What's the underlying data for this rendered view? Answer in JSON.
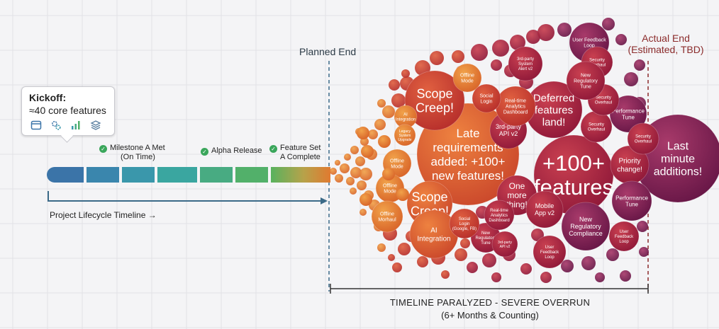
{
  "kickoff": {
    "title": "Kickoff:",
    "subtitle": "≈40 core features",
    "icons": [
      "window-icon",
      "gears-icon",
      "bar-chart-icon",
      "layers-icon"
    ]
  },
  "milestones": [
    {
      "line1": "Milestone A Met",
      "line2": "(On Time)"
    },
    {
      "line1": "Alpha Release",
      "line2": ""
    },
    {
      "line1": "Feature Set",
      "line2": "A Complete"
    }
  ],
  "timeline": {
    "lifecycle_label": "Project Lifecycle Timeline →",
    "planned_end": "Planned End",
    "actual_end_line1": "Actual End",
    "actual_end_line2": "(Estimated, TBD)",
    "overrun_line1": "TIMELINE PARALYZED - SEVERE OVERRUN",
    "overrun_line2": "(6+ Months & Counting)"
  },
  "colors": {
    "timeline_start": "#3b74a8",
    "timeline_mid": "#3aa6a0",
    "timeline_end": "#58b25e",
    "orange": "#e07a30",
    "red": "#c23a2a",
    "crimson": "#a3203a",
    "purple": "#7a1e52",
    "dashed_blue": "#3b6a88",
    "dashed_red": "#8b2b2b"
  },
  "bubbles": [
    {
      "lines": [
        "Late",
        "requirements",
        "added: +100+",
        "new features!"
      ],
      "tone": "orange-red"
    },
    {
      "lines": [
        "+100+",
        "features"
      ],
      "tone": "crimson"
    },
    {
      "lines": [
        "Scope",
        "Creep!"
      ],
      "tone": "red"
    },
    {
      "lines": [
        "Scope",
        "Creep!"
      ],
      "tone": "orange-red"
    },
    {
      "lines": [
        "Last",
        "minute",
        "additions!"
      ],
      "tone": "purple"
    },
    {
      "lines": [
        "Deferred",
        "features",
        "land!"
      ],
      "tone": "crimson"
    },
    {
      "lines": [
        "One",
        "more",
        "thing!"
      ],
      "tone": "crimson"
    },
    {
      "lines": [
        "Priority",
        "change!"
      ],
      "tone": "crimson"
    },
    {
      "lines": [
        "AI",
        "Integration"
      ],
      "tone": "orange-red"
    },
    {
      "lines": [
        "3rd-party",
        "API v2"
      ],
      "tone": "crimson"
    },
    {
      "lines": [
        "Mobile",
        "App v2"
      ],
      "tone": "crimson"
    },
    {
      "lines": [
        "New",
        "Regulatory",
        "Compliance"
      ],
      "tone": "purple"
    },
    {
      "lines": [
        "Performance",
        "Tune"
      ],
      "tone": "purple"
    },
    {
      "lines": [
        "Performance",
        "Tune"
      ],
      "tone": "purple"
    },
    {
      "lines": [
        "Real-time",
        "Analytics",
        "Dashboard"
      ],
      "tone": "red"
    },
    {
      "lines": [
        "User Feedback",
        "Loop"
      ],
      "tone": "purple"
    },
    {
      "lines": [
        "Security",
        "Overhaul"
      ],
      "tone": "crimson"
    },
    {
      "lines": [
        "Security",
        "Overhaul"
      ],
      "tone": "crimson"
    },
    {
      "lines": [
        "Security",
        "Overhaul"
      ],
      "tone": "crimson"
    },
    {
      "lines": [
        "Security",
        "Overhaul"
      ],
      "tone": "crimson"
    },
    {
      "lines": [
        "New",
        "Regulatory",
        "Tune"
      ],
      "tone": "crimson"
    },
    {
      "lines": [
        "New",
        "Regulatory",
        "Tune"
      ],
      "tone": "crimson"
    },
    {
      "lines": [
        "User",
        "Feedback",
        "Loop"
      ],
      "tone": "crimson"
    },
    {
      "lines": [
        "User",
        "Feedback",
        "Loop"
      ],
      "tone": "crimson"
    },
    {
      "lines": [
        "Offline",
        "Mode"
      ],
      "tone": "orange"
    },
    {
      "lines": [
        "Offline",
        "Mode"
      ],
      "tone": "orange"
    },
    {
      "lines": [
        "Offline",
        "Mode"
      ],
      "tone": "orange"
    },
    {
      "lines": [
        "Offline",
        "Morhaul"
      ],
      "tone": "orange"
    },
    {
      "lines": [
        "AI",
        "Integration"
      ],
      "tone": "orange"
    },
    {
      "lines": [
        "Legacy",
        "System",
        "Upgrade"
      ],
      "tone": "orange"
    },
    {
      "lines": [
        "Social",
        "Login"
      ],
      "tone": "red"
    },
    {
      "lines": [
        "Social",
        "Login",
        "(Google, FB)"
      ],
      "tone": "red"
    },
    {
      "lines": [
        "Real-time",
        "Analytics",
        "Dashboard"
      ],
      "tone": "crimson"
    },
    {
      "lines": [
        "3rd-party",
        "API v2"
      ],
      "tone": "crimson"
    },
    {
      "lines": [
        "3rd-party",
        "System",
        "Alert v2"
      ],
      "tone": "crimson"
    }
  ]
}
